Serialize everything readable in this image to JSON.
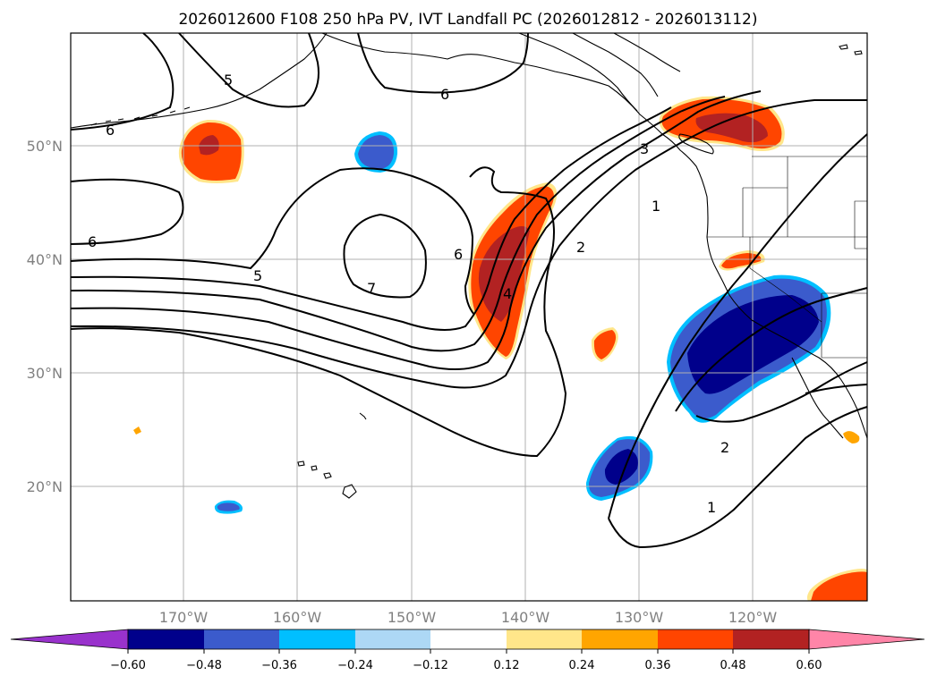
{
  "figure": {
    "title": "2026012600 F108 250 hPa PV, IVT Landfall PC (2026012812 - 2026013112)"
  },
  "map": {
    "lon_labels": [
      "170°W",
      "160°W",
      "150°W",
      "140°W",
      "130°W",
      "120°W"
    ],
    "lat_labels": [
      "50°N",
      "40°N",
      "30°N",
      "20°N"
    ],
    "contour_labels": [
      "6",
      "6",
      "5",
      "6",
      "5",
      "7",
      "6",
      "4",
      "3",
      "2",
      "1",
      "2",
      "1"
    ],
    "fill_colors": {
      "neg_060": "#9932cc",
      "neg_048": "#00008b",
      "neg_036": "#3b5bcc",
      "neg_024": "#00bfff",
      "neg_012": "#add8f5",
      "zero": "#ffffff",
      "pos_012": "#ffe68a",
      "pos_024": "#ffa500",
      "pos_036": "#ff4500",
      "pos_048": "#b22222",
      "pos_060": "#ff85a8"
    }
  },
  "colorbar": {
    "ticks": [
      "−0.60",
      "−0.48",
      "−0.36",
      "−0.24",
      "−0.12",
      "0.12",
      "0.24",
      "0.36",
      "0.48",
      "0.60"
    ],
    "colors": [
      "#9932cc",
      "#00008b",
      "#3b5bcc",
      "#00bfff",
      "#add8f5",
      "#ffffff",
      "#ffe68a",
      "#ffa500",
      "#ff4500",
      "#b22222",
      "#ff85a8"
    ]
  }
}
